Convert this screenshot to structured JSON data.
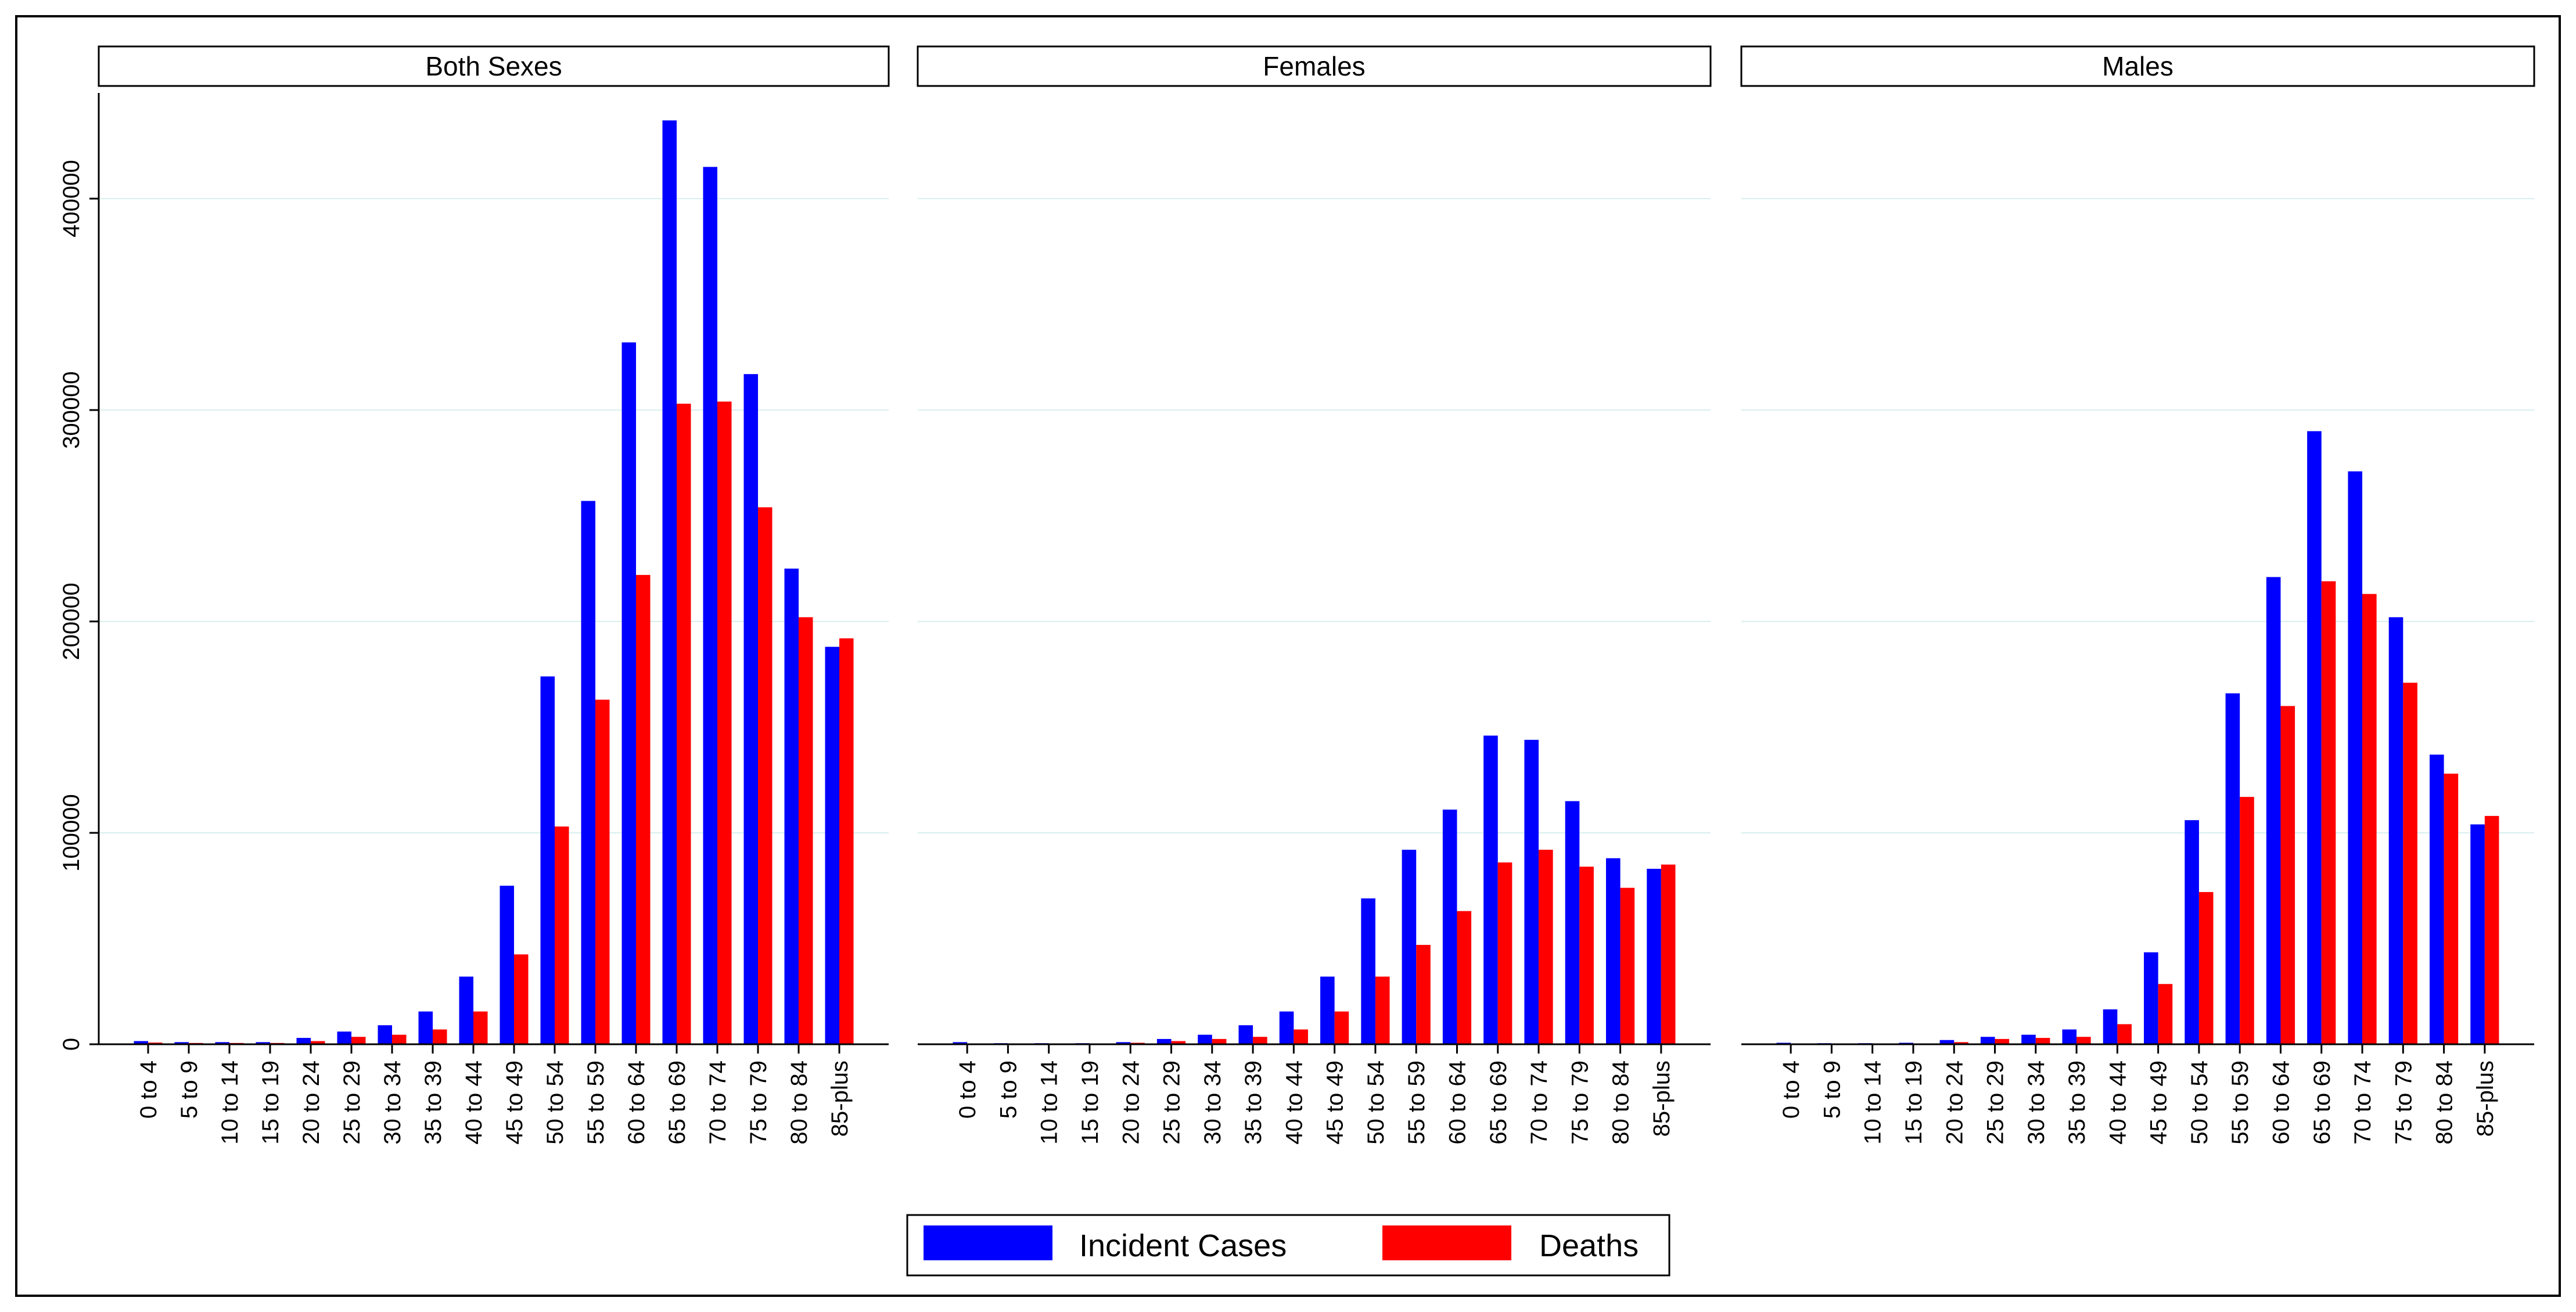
{
  "chart_data": {
    "type": "bar",
    "categories": [
      "0 to 4",
      "5 to 9",
      "10 to 14",
      "15 to 19",
      "20 to 24",
      "25 to 29",
      "30 to 34",
      "35 to 39",
      "40 to 44",
      "45 to 49",
      "50 to 54",
      "55 to 59",
      "60 to 64",
      "65 to 69",
      "70 to 74",
      "75 to 79",
      "80 to 84",
      "85-plus"
    ],
    "ylim": [
      0,
      450000
    ],
    "yticks": [
      0,
      100000,
      200000,
      300000,
      400000
    ],
    "ytick_labels": [
      "0",
      "100000",
      "200000",
      "300000",
      "400000"
    ],
    "grid": true,
    "legend_position": "bottom-center",
    "colors": {
      "Incident Cases": "#0000ff",
      "Deaths": "#ff0000"
    },
    "panels": [
      {
        "title": "Both Sexes",
        "series": [
          {
            "name": "Incident Cases",
            "values": [
              1500,
              1000,
              1000,
              1000,
              3000,
              6000,
              9000,
              15500,
              32000,
              75000,
              174000,
              257000,
              332000,
              437000,
              415000,
              317000,
              225000,
              188000
            ]
          },
          {
            "name": "Deaths",
            "values": [
              800,
              600,
              600,
              600,
              1500,
              3500,
              4500,
              7000,
              15500,
              42500,
              103000,
              163000,
              222000,
              303000,
              304000,
              254000,
              202000,
              192000
            ]
          }
        ]
      },
      {
        "title": "Females",
        "series": [
          {
            "name": "Incident Cases",
            "values": [
              1000,
              500,
              500,
              500,
              1000,
              2500,
              4500,
              9000,
              15500,
              32000,
              69000,
              92000,
              111000,
              146000,
              144000,
              115000,
              88000,
              83000
            ]
          },
          {
            "name": "Deaths",
            "values": [
              400,
              300,
              300,
              300,
              700,
              1500,
              2500,
              3500,
              7000,
              15500,
              32000,
              47000,
              63000,
              86000,
              92000,
              84000,
              74000,
              85000
            ]
          }
        ]
      },
      {
        "title": "Males",
        "series": [
          {
            "name": "Incident Cases",
            "values": [
              700,
              500,
              500,
              700,
              2000,
              3500,
              4500,
              7000,
              16500,
              43500,
              106000,
              166000,
              221000,
              290000,
              271000,
              202000,
              137000,
              104000
            ]
          },
          {
            "name": "Deaths",
            "values": [
              400,
              300,
              300,
              400,
              1000,
              2500,
              3000,
              3500,
              9500,
              28500,
              72000,
              117000,
              160000,
              219000,
              213000,
              171000,
              128000,
              108000
            ]
          }
        ]
      }
    ],
    "legend": [
      {
        "name": "Incident Cases",
        "label": "Incident Cases"
      },
      {
        "name": "Deaths",
        "label": "Deaths"
      }
    ]
  }
}
